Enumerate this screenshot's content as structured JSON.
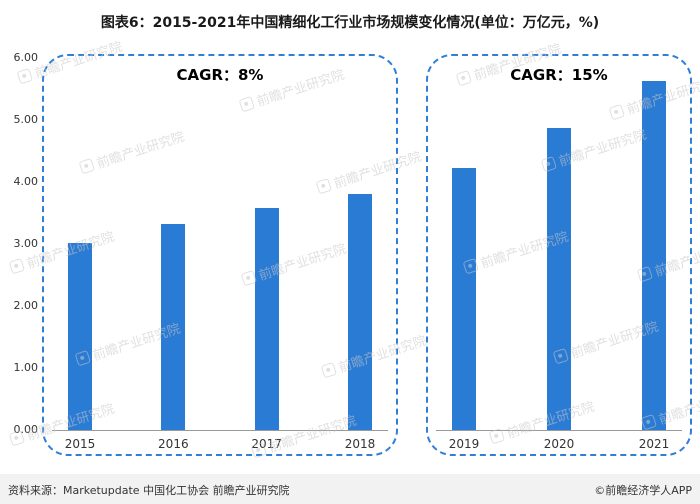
{
  "title": "图表6：2015-2021年中国精细化工行业市场规模变化情况(单位：万亿元，%)",
  "colors": {
    "bar": "#2A7BD4",
    "group_box_border": "#2F7FD9",
    "watermark": "#c8c8c8"
  },
  "y_axis": {
    "max": 6,
    "ticks": [
      "6.00",
      "5.00",
      "4.00",
      "3.00",
      "2.00",
      "1.00",
      "0.00"
    ]
  },
  "chart_data": {
    "type": "bar",
    "title": "2015-2021年中国精细化工行业市场规模变化情况",
    "unit": "万亿元，%",
    "categories": [
      "2015",
      "2016",
      "2017",
      "2018",
      "2019",
      "2020",
      "2021"
    ],
    "values": [
      3.0,
      3.3,
      3.57,
      3.79,
      4.2,
      4.85,
      5.6
    ],
    "xlabel": "",
    "ylabel": "万亿元",
    "ylim": [
      0,
      6
    ],
    "grid": false,
    "legend": false,
    "groups": [
      {
        "label": "CAGR：8%",
        "categories": [
          "2015",
          "2016",
          "2017",
          "2018"
        ],
        "values": [
          3.0,
          3.3,
          3.57,
          3.79
        ]
      },
      {
        "label": "CAGR：15%",
        "categories": [
          "2019",
          "2020",
          "2021"
        ],
        "values": [
          4.2,
          4.85,
          5.6
        ]
      }
    ]
  },
  "watermark": {
    "text": "前瞻产业研究院",
    "icon": "qianzhan-logo-icon"
  },
  "footer": {
    "source": "资料来源：Marketupdate 中国化工协会 前瞻产业研究院",
    "copyright": "©前瞻经济学人APP"
  }
}
